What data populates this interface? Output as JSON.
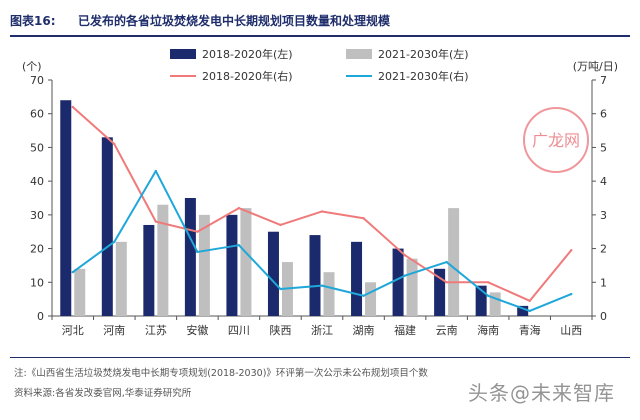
{
  "header": {
    "figure_number": "图表16:",
    "title": "已发布的各省垃圾焚烧发电中长期规划项目数量和处理规模"
  },
  "chart_data": {
    "type": "bar",
    "categories": [
      "河北",
      "河南",
      "江苏",
      "安徽",
      "四川",
      "陕西",
      "浙江",
      "湖南",
      "福建",
      "云南",
      "海南",
      "青海",
      "山西"
    ],
    "left_axis": {
      "unit_label": "(个)",
      "range": [
        0,
        70
      ],
      "ticks": [
        0,
        10,
        20,
        30,
        40,
        50,
        60,
        70
      ]
    },
    "right_axis": {
      "unit_label": "(万吨/日)",
      "range": [
        0,
        7
      ],
      "ticks": [
        0,
        1,
        2,
        3,
        4,
        5,
        6,
        7
      ]
    },
    "grid": false,
    "legend_position": "top",
    "series": [
      {
        "name": "2018-2020年(左)",
        "kind": "bar",
        "axis": "left",
        "color": "#1a2a6c",
        "values": [
          64,
          53,
          27,
          35,
          30,
          25,
          24,
          22,
          20,
          14,
          9,
          3,
          null
        ]
      },
      {
        "name": "2021-2030年(左)",
        "kind": "bar",
        "axis": "left",
        "color": "#bfbfbf",
        "values": [
          14,
          22,
          33,
          30,
          32,
          16,
          13,
          10,
          17,
          32,
          7,
          null,
          null
        ]
      },
      {
        "name": "2018-2020年(右)",
        "kind": "line",
        "axis": "right",
        "color": "#f07a7a",
        "values": [
          6.2,
          5.1,
          2.8,
          2.5,
          3.2,
          2.7,
          3.1,
          2.9,
          1.8,
          1.0,
          1.0,
          0.45,
          1.95
        ]
      },
      {
        "name": "2021-2030年(右)",
        "kind": "line",
        "axis": "right",
        "color": "#1fa7d9",
        "values": [
          1.3,
          2.2,
          4.3,
          1.9,
          2.1,
          0.8,
          0.9,
          0.6,
          1.2,
          1.6,
          0.6,
          0.15,
          0.65
        ]
      }
    ]
  },
  "footer": {
    "note": "注:《山西省生活垃圾焚烧发电中长期专项规划(2018-2030)》环评第一次公示未公布规划项目个数",
    "source": "资料来源:各省发改委官网,华泰证券研究所"
  },
  "watermark": {
    "text": "头条@未来智库",
    "logo_text": "广龙网",
    "logo_color": "#e0303a"
  }
}
